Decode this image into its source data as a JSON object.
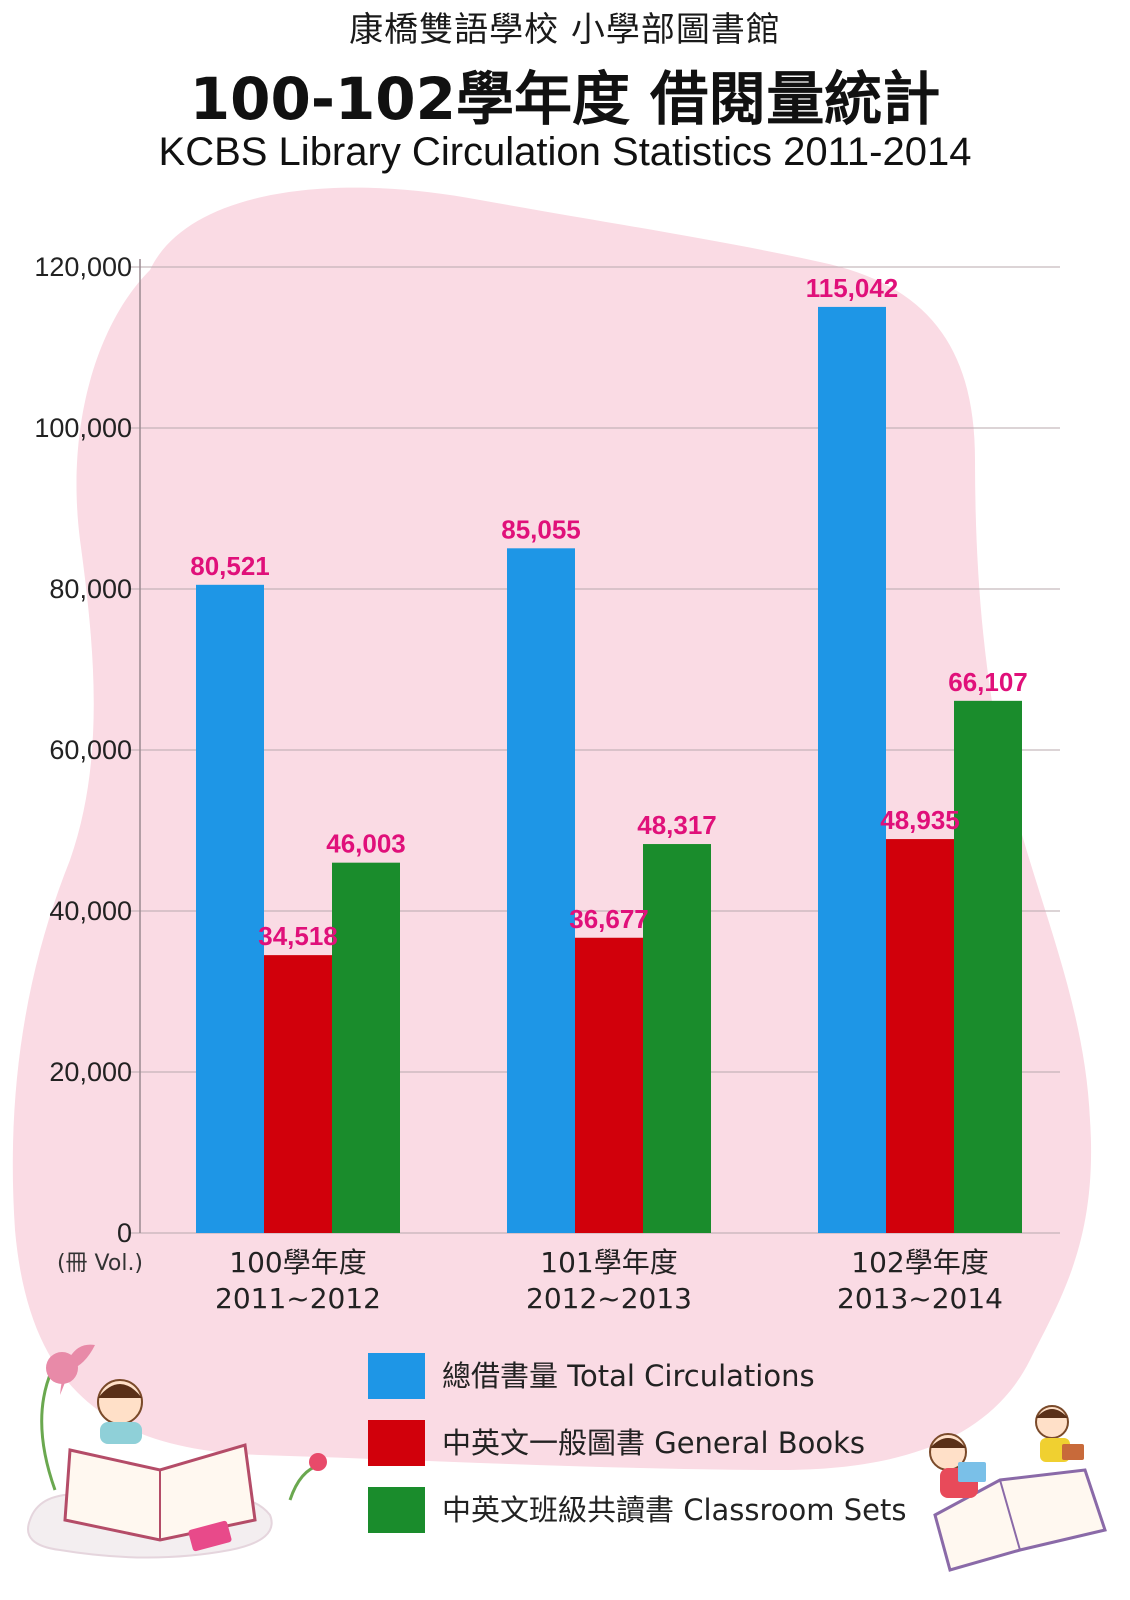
{
  "header": {
    "school": "康橋雙語學校 小學部圖書館",
    "title": "100-102學年度 借閱量統計",
    "subtitle": "KCBS Library Circulation Statistics 2011-2014"
  },
  "chart_data": {
    "type": "bar",
    "title": "100-102學年度 借閱量統計",
    "subtitle": "KCBS Library Circulation Statistics 2011-2014",
    "ylabel": "(冊 Vol.)",
    "xlabel": "",
    "ylim": [
      0,
      120000
    ],
    "yticks": [
      0,
      20000,
      40000,
      60000,
      80000,
      100000,
      120000
    ],
    "ytick_labels": [
      "0",
      "20,000",
      "40,000",
      "60,000",
      "80,000",
      "100,000",
      "120,000"
    ],
    "categories": [
      {
        "line1": "100學年度",
        "line2": "2011~2012"
      },
      {
        "line1": "101學年度",
        "line2": "2012~2013"
      },
      {
        "line1": "102學年度",
        "line2": "2013~2014"
      }
    ],
    "series": [
      {
        "name": "總借書量 Total Circulations",
        "color": "#1e96e6",
        "values": [
          80521,
          85055,
          115042
        ],
        "labels": [
          "80,521",
          "85,055",
          "115,042"
        ]
      },
      {
        "name": "中英文一般圖書 General Books",
        "color": "#d1000b",
        "values": [
          34518,
          36677,
          48935
        ],
        "labels": [
          "34,518",
          "36,677",
          "48,935"
        ]
      },
      {
        "name": "中英文班級共讀書 Classroom Sets",
        "color": "#1a8c2c",
        "values": [
          46003,
          48317,
          66107
        ],
        "labels": [
          "46,003",
          "48,317",
          "66,107"
        ]
      }
    ],
    "grid": true,
    "legend_position": "bottom"
  }
}
